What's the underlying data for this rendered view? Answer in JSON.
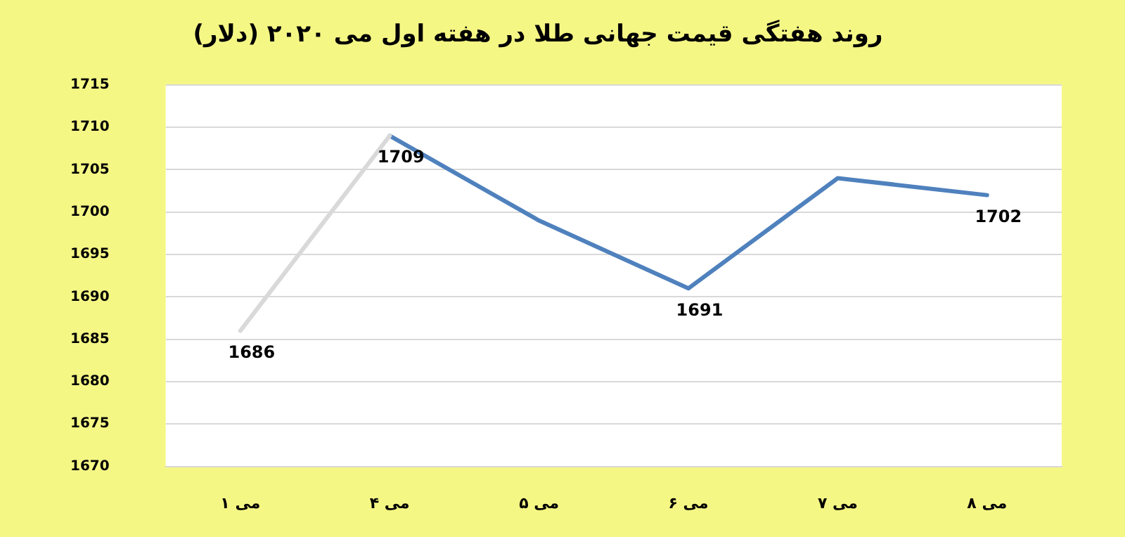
{
  "chart_data": {
    "type": "line",
    "title": "روند هفتگی قیمت جهانی طلا در هفته اول می ۲۰۲۰ (دلار)",
    "categories": [
      "۱ می",
      "۴ می",
      "۵ می",
      "۶ می",
      "۷ می",
      "۸ می"
    ],
    "series": [
      {
        "color": "#d9d9d9",
        "values": [
          1686,
          1709,
          null,
          null,
          null,
          null
        ],
        "value_labels": [
          "1686",
          null,
          null,
          null,
          null,
          null
        ]
      },
      {
        "color": "#4f81bd",
        "values": [
          null,
          1709,
          1699,
          1691,
          1704,
          1702
        ],
        "value_labels": [
          null,
          "1709",
          null,
          "1691",
          null,
          "1702"
        ]
      }
    ],
    "ylim": [
      1670,
      1715
    ],
    "yticks": [
      1670,
      1675,
      1680,
      1685,
      1690,
      1695,
      1700,
      1705,
      1710,
      1715
    ],
    "grid": "y",
    "legend": false,
    "marker": "none",
    "line_style": "solid"
  }
}
